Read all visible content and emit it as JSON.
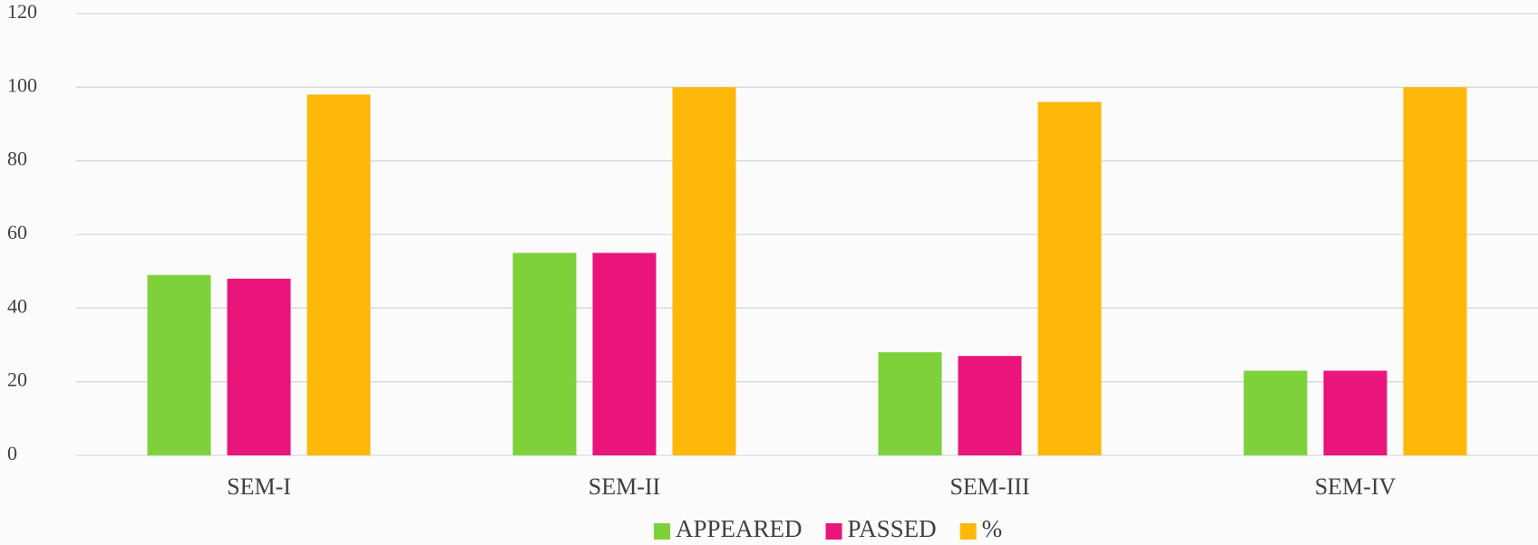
{
  "chart_data": {
    "type": "bar",
    "categories": [
      "SEM-I",
      "SEM-II",
      "SEM-III",
      "SEM-IV"
    ],
    "series": [
      {
        "name": "APPEARED",
        "color": "#7fd13b",
        "values": [
          49,
          55,
          28,
          23
        ]
      },
      {
        "name": "PASSED",
        "color": "#ea157a",
        "values": [
          48,
          55,
          27,
          23
        ]
      },
      {
        "name": "%",
        "color": "#feb80a",
        "values": [
          98,
          100,
          96,
          100
        ]
      }
    ],
    "ylim": [
      0,
      120
    ],
    "yticks": [
      0,
      20,
      40,
      60,
      80,
      100,
      120
    ],
    "grid": true,
    "legend": "bottom"
  }
}
